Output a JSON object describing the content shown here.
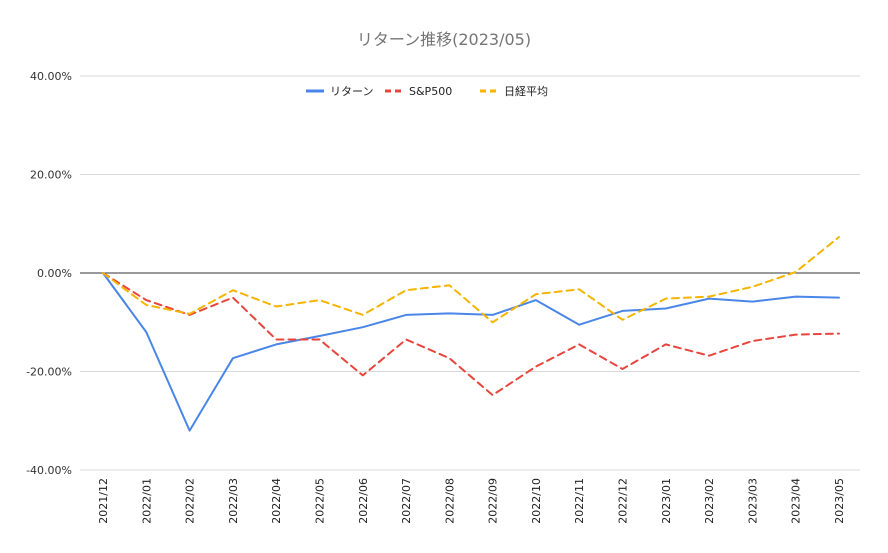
{
  "chart_data": {
    "type": "line",
    "title": "リターン推移(2023/05)",
    "xlabel": "",
    "ylabel": "",
    "ylim": [
      -40,
      40
    ],
    "y_ticks": [
      40,
      20,
      0,
      -20,
      -40
    ],
    "y_tick_labels": [
      "40.00%",
      "20.00%",
      "0.00%",
      "-20.00%",
      "-40.00%"
    ],
    "grid": true,
    "legend_position": "top",
    "categories": [
      "2021/12",
      "2022/01",
      "2022/02",
      "2022/03",
      "2022/04",
      "2022/05",
      "2022/06",
      "2022/07",
      "2022/08",
      "2022/09",
      "2022/10",
      "2022/11",
      "2022/12",
      "2023/01",
      "2023/02",
      "2023/03",
      "2023/04",
      "2023/05"
    ],
    "series": [
      {
        "name": "リターン",
        "color": "#4a86e8",
        "dashed": false,
        "values": [
          0,
          -12,
          -32,
          -17.3,
          -14.5,
          -12.8,
          -11,
          -8.5,
          -8.2,
          -8.5,
          -5.5,
          -10.5,
          -7.7,
          -7.2,
          -5.2,
          -5.8,
          -4.8,
          -5
        ]
      },
      {
        "name": "S&P500",
        "color": "#e8453c",
        "dashed": true,
        "values": [
          0,
          -5.5,
          -8.5,
          -5,
          -13.5,
          -13.5,
          -20.8,
          -13.5,
          -17.3,
          -24.8,
          -19,
          -14.5,
          -19.5,
          -14.5,
          -16.8,
          -13.8,
          -12.5,
          -12.3
        ]
      },
      {
        "name": "日経平均",
        "color": "#f4b400",
        "dashed": true,
        "values": [
          0,
          -6.5,
          -8.3,
          -3.5,
          -6.8,
          -5.5,
          -8.5,
          -3.5,
          -2.5,
          -10,
          -4.3,
          -3.3,
          -9.5,
          -5.2,
          -4.8,
          -2.8,
          0.2,
          7.3
        ]
      }
    ]
  }
}
